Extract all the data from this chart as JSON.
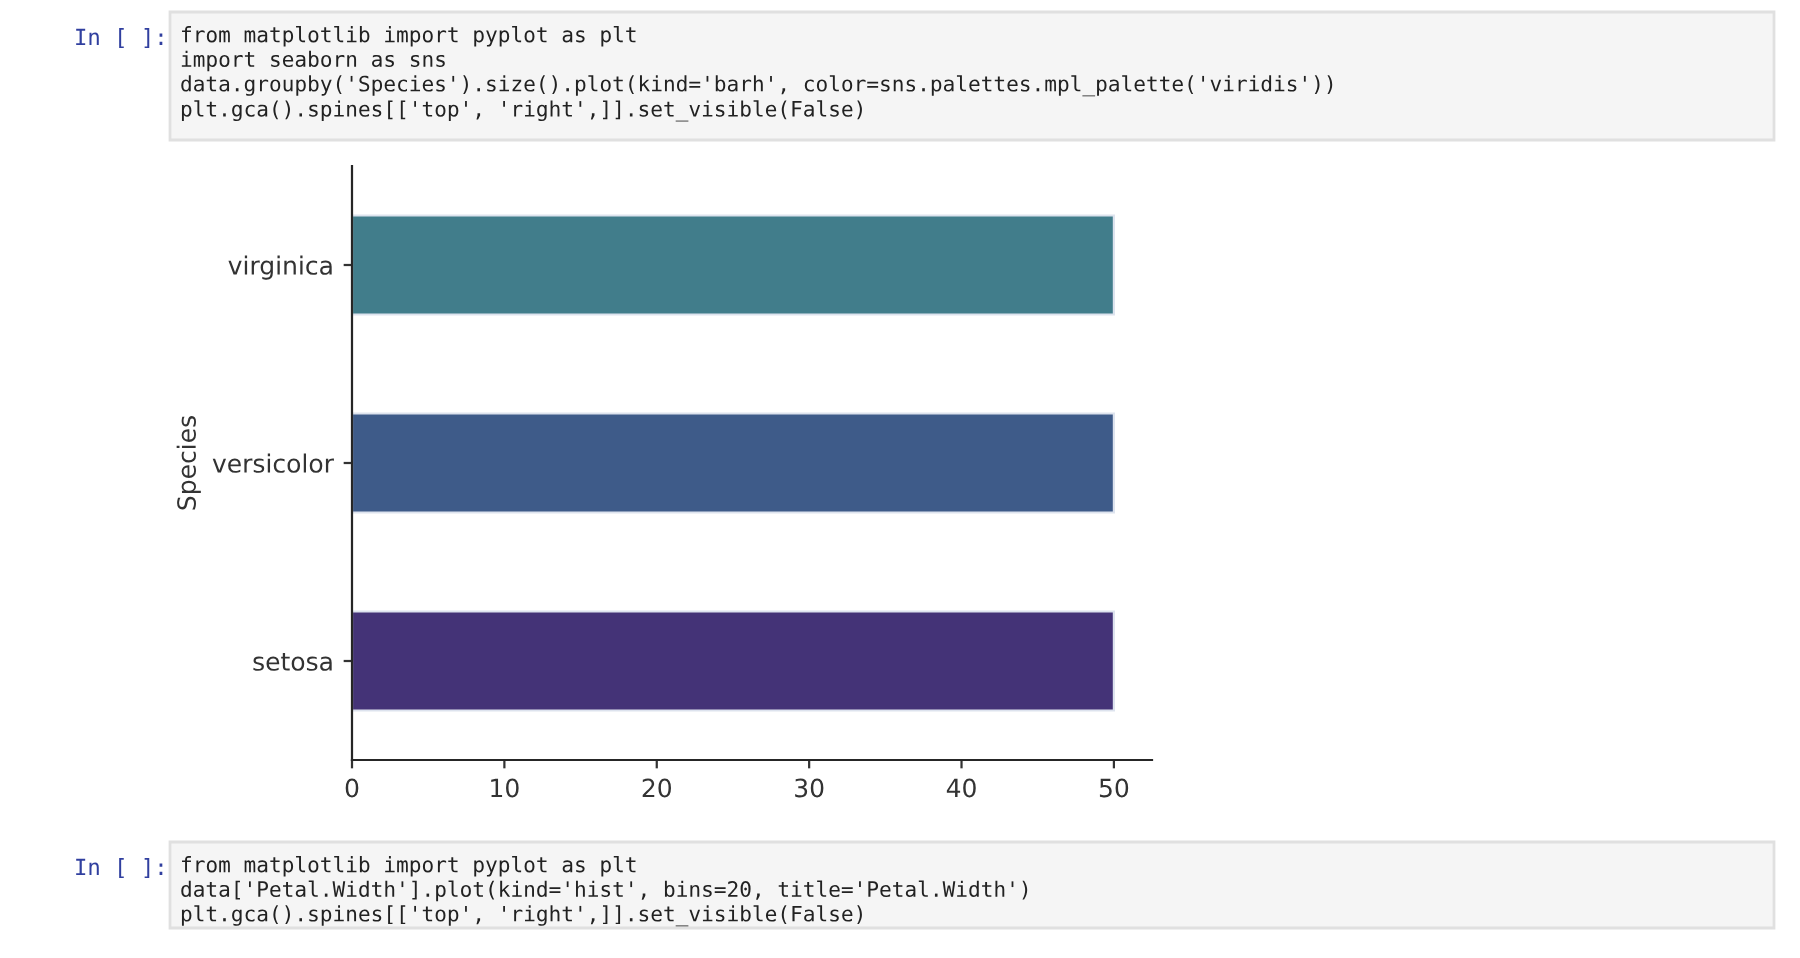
{
  "chart_data": {
    "type": "bar",
    "orientation": "horizontal",
    "ylabel": "Species",
    "categories": [
      "virginica",
      "versicolor",
      "setosa"
    ],
    "values": [
      50,
      50,
      50
    ],
    "colors": [
      "#417d8b",
      "#3e5b89",
      "#443377"
    ],
    "xlim": [
      0,
      52.5
    ],
    "xticks": [
      0,
      10,
      20,
      30,
      40,
      50
    ],
    "grid": false,
    "legend": false,
    "annotations": [
      "In [ ]:",
      "from matplotlib import pyplot as plt\nimport seaborn as sns\ndata.groupby('Species').size().plot(kind='barh', color=sns.palettes.mpl_palette('viridis'))\nplt.gca().spines[['top', 'right',]].set_visible(False)",
      "In [ ]:",
      "from matplotlib import pyplot as plt\ndata['Petal.Width'].plot(kind='hist', bins=20, title='Petal.Width')\nplt.gca().spines[['top', 'right',]].set_visible(False)"
    ]
  }
}
